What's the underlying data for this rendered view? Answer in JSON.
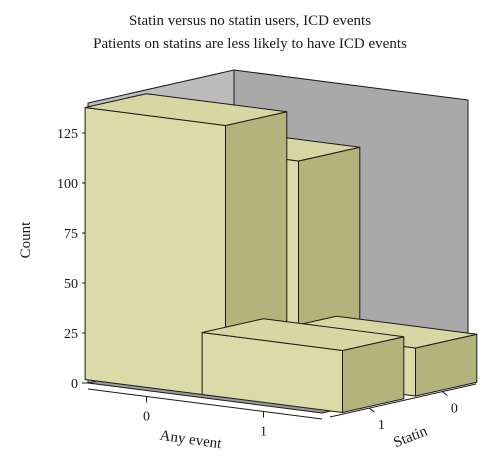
{
  "chart_data": {
    "type": "bar",
    "title": "Statin versus no statin users, ICD events",
    "subtitle": "Patients on statins are less likely to have ICD events",
    "ylabel": "Count",
    "xlabel": "Any event",
    "zlabel": "Statin",
    "x_categories": [
      "0",
      "1"
    ],
    "z_categories": [
      "1",
      "0"
    ],
    "yticks": [
      0,
      25,
      50,
      75,
      100,
      125
    ],
    "ylim": [
      0,
      140
    ],
    "bar_color": "#d8d6a2",
    "bars": [
      {
        "any_event": "0",
        "statin": "1",
        "value": 136
      },
      {
        "any_event": "0",
        "statin": "0",
        "value": 110
      },
      {
        "any_event": "1",
        "statin": "1",
        "value": 31
      },
      {
        "any_event": "1",
        "statin": "0",
        "value": 24
      }
    ]
  }
}
